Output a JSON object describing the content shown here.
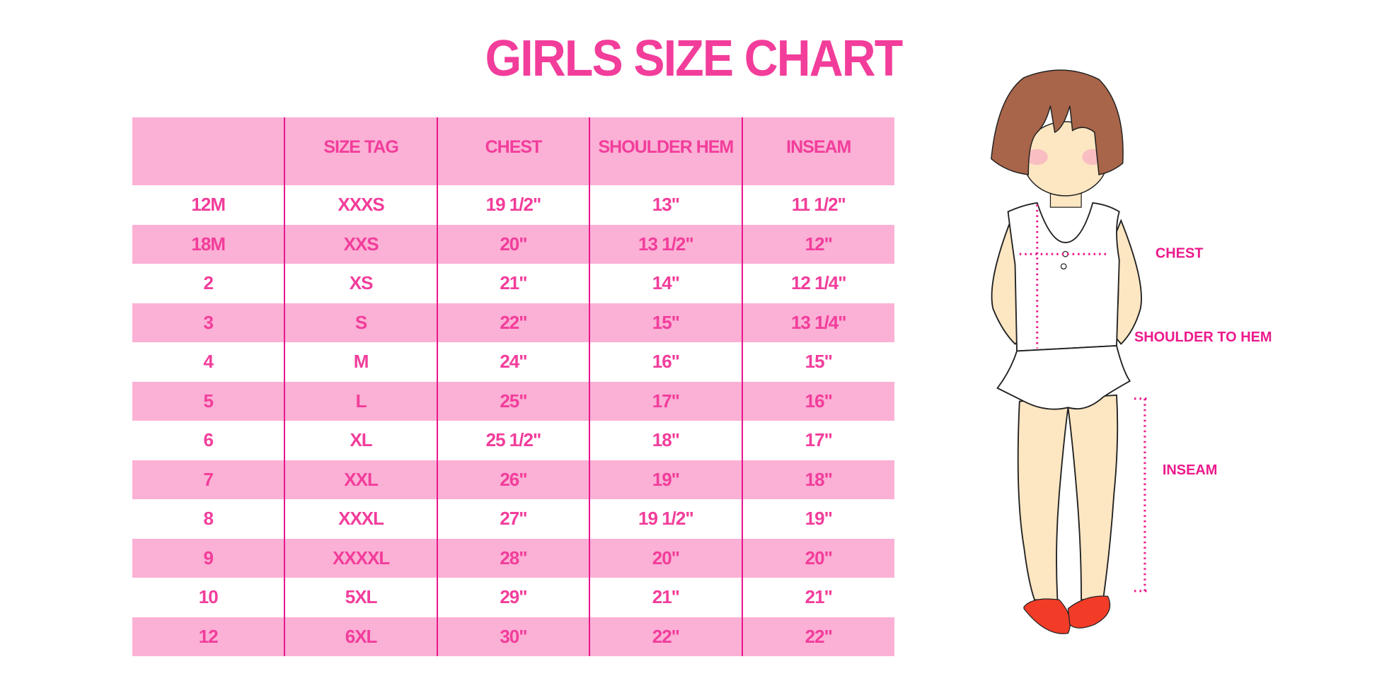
{
  "title": "GIRLS SIZE CHART",
  "table": {
    "headers": [
      "",
      "SIZE TAG",
      "CHEST",
      "SHOULDER HEM",
      "INSEAM"
    ],
    "rows": [
      [
        "12M",
        "XXXS",
        "19 1/2\"",
        "13\"",
        "11 1/2\""
      ],
      [
        "18M",
        "XXS",
        "20\"",
        "13 1/2\"",
        "12\""
      ],
      [
        "2",
        "XS",
        "21\"",
        "14\"",
        "12 1/4\""
      ],
      [
        "3",
        "S",
        "22\"",
        "15\"",
        "13 1/4\""
      ],
      [
        "4",
        "M",
        "24\"",
        "16\"",
        "15\""
      ],
      [
        "5",
        "L",
        "25\"",
        "17\"",
        "16\""
      ],
      [
        "6",
        "XL",
        "25 1/2\"",
        "18\"",
        "17\""
      ],
      [
        "7",
        "XXL",
        "26\"",
        "19\"",
        "18\""
      ],
      [
        "8",
        "XXXL",
        "27\"",
        "19 1/2\"",
        "19\""
      ],
      [
        "9",
        "XXXXL",
        "28\"",
        "20\"",
        "20\""
      ],
      [
        "10",
        "5XL",
        "29\"",
        "21\"",
        "21\""
      ],
      [
        "12",
        "6XL",
        "30\"",
        "22\"",
        "22\""
      ]
    ]
  },
  "figure": {
    "labels": {
      "chest": "CHEST",
      "shoulder_to_hem": "SHOULDER TO HEM",
      "inseam": "INSEAM"
    }
  },
  "colors": {
    "accent": "#f23d9b",
    "row_pink": "#fbb0d5",
    "divider": "#e8168c"
  }
}
